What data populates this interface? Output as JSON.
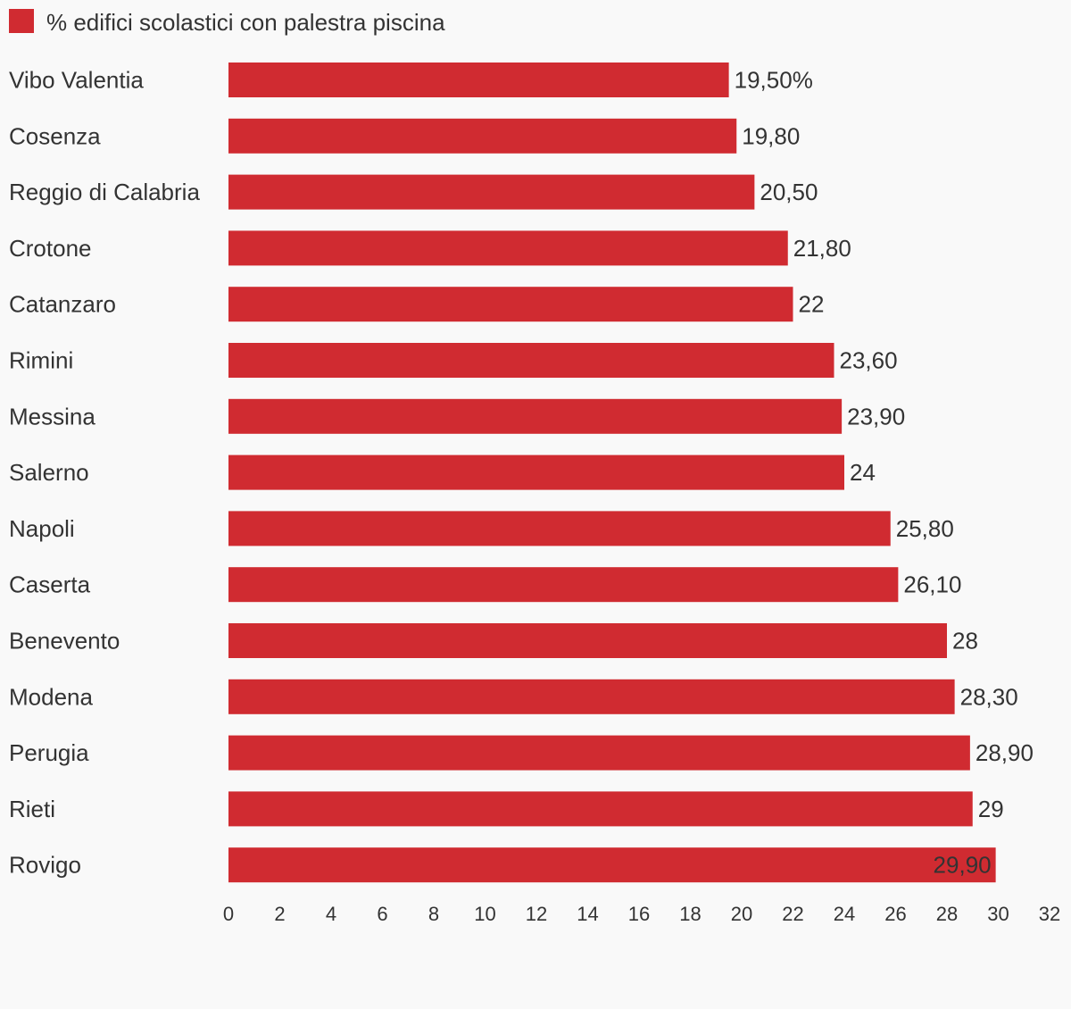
{
  "legend": {
    "label": "% edifici scolastici con palestra piscina",
    "color": "#d02b31"
  },
  "chart_data": {
    "type": "bar",
    "orientation": "horizontal",
    "title": "",
    "xlabel": "",
    "ylabel": "",
    "xlim": [
      0,
      32
    ],
    "xticks": [
      "0",
      "2",
      "4",
      "6",
      "8",
      "10",
      "12",
      "14",
      "16",
      "18",
      "20",
      "22",
      "24",
      "26",
      "28",
      "30",
      "32"
    ],
    "grid": false,
    "legend_position": "top-left",
    "categories": [
      "Vibo Valentia",
      "Cosenza",
      "Reggio di Calabria",
      "Crotone",
      "Catanzaro",
      "Rimini",
      "Messina",
      "Salerno",
      "Napoli",
      "Caserta",
      "Benevento",
      "Modena",
      "Perugia",
      "Rieti",
      "Rovigo"
    ],
    "series": [
      {
        "name": "% edifici scolastici con palestra piscina",
        "color": "#d02b31",
        "values": [
          19.5,
          19.8,
          20.5,
          21.8,
          22,
          23.6,
          23.9,
          24,
          25.8,
          26.1,
          28,
          28.3,
          28.9,
          29,
          29.9
        ],
        "labels": [
          "19,50%",
          "19,80",
          "20,50",
          "21,80",
          "22",
          "23,60",
          "23,90",
          "24",
          "25,80",
          "26,10",
          "28",
          "28,30",
          "28,90",
          "29",
          "29,90"
        ]
      }
    ]
  }
}
